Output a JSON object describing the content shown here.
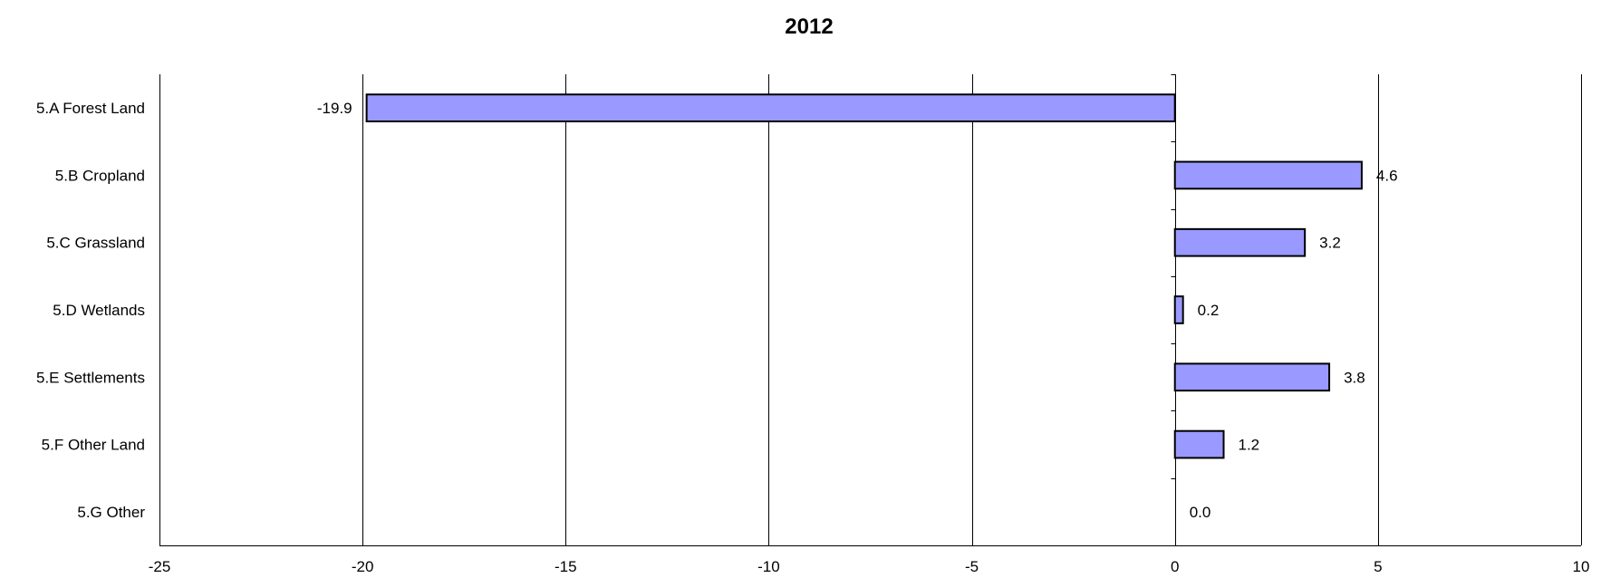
{
  "chart_data": {
    "type": "bar",
    "orientation": "horizontal",
    "title": "2012",
    "categories": [
      "5.A Forest Land",
      "5.B Cropland",
      "5.C Grassland",
      "5.D Wetlands",
      "5.E Settlements",
      "5.F Other Land",
      "5.G Other"
    ],
    "values": [
      -19.9,
      4.6,
      3.2,
      0.2,
      3.8,
      1.2,
      0.0
    ],
    "value_labels": [
      "-19.9",
      "4.6",
      "3.2",
      "0.2",
      "3.8",
      "1.2",
      "0.0"
    ],
    "xlim": [
      -25,
      10
    ],
    "xticks": [
      -25,
      -20,
      -15,
      -10,
      -5,
      0,
      5,
      10
    ],
    "xtick_labels": [
      "-25",
      "-20",
      "-15",
      "-10",
      "-5",
      "0",
      "5",
      "10"
    ],
    "grid": "vertical",
    "legend": "none",
    "bar_color": "#9999ff",
    "bar_edge_color": "#000000"
  }
}
